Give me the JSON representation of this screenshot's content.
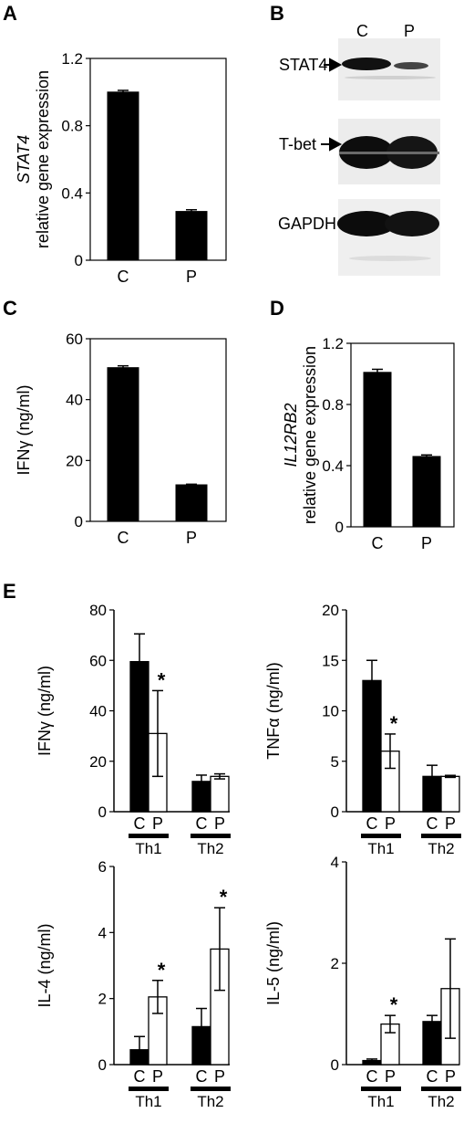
{
  "panels": {
    "A": "A",
    "B": "B",
    "C": "C",
    "D": "D",
    "E": "E"
  },
  "blot": {
    "lanes": [
      "C",
      "P"
    ],
    "bands": [
      {
        "label": "STAT4",
        "arrow": true
      },
      {
        "label": "T-bet",
        "arrow": true
      },
      {
        "label": "GAPDH",
        "arrow": false
      }
    ]
  },
  "chart_data": [
    {
      "id": "A",
      "type": "bar",
      "categories": [
        "C",
        "P"
      ],
      "values": [
        1.0,
        0.29
      ],
      "errors": [
        0.01,
        0.01
      ],
      "ylabel_italic": "STAT4",
      "ylabel": "relative gene expression",
      "ylim": [
        0,
        1.2
      ],
      "yticks": [
        "0",
        "0.4",
        "0.8",
        "1.2"
      ],
      "ytick_values": [
        0,
        0.4,
        0.8,
        1.2
      ],
      "colors": [
        "#000000",
        "#000000"
      ],
      "frame": "box"
    },
    {
      "id": "C",
      "type": "bar",
      "categories": [
        "C",
        "P"
      ],
      "values": [
        50.5,
        12.0
      ],
      "errors": [
        0.6,
        0.2
      ],
      "ylabel_italic": "",
      "ylabel": "IFNγ (ng/ml)",
      "ylim": [
        0,
        60
      ],
      "yticks": [
        "0",
        "20",
        "40",
        "60"
      ],
      "ytick_values": [
        0,
        20,
        40,
        60
      ],
      "colors": [
        "#000000",
        "#000000"
      ],
      "frame": "box"
    },
    {
      "id": "D",
      "type": "bar",
      "categories": [
        "C",
        "P"
      ],
      "values": [
        1.01,
        0.46
      ],
      "errors": [
        0.02,
        0.01
      ],
      "ylabel_italic": "IL12RB2",
      "ylabel": "relative gene expression",
      "ylim": [
        0,
        1.2
      ],
      "yticks": [
        "0",
        "0.4",
        "0.8",
        "1.2"
      ],
      "ytick_values": [
        0,
        0.4,
        0.8,
        1.2
      ],
      "colors": [
        "#000000",
        "#000000"
      ],
      "frame": "box"
    },
    {
      "id": "E1",
      "type": "bar",
      "grouped": true,
      "groups": [
        "Th1",
        "Th2"
      ],
      "categories": [
        "C",
        "P"
      ],
      "series": [
        {
          "name": "C",
          "values": [
            59.5,
            12.0
          ],
          "errors": [
            11.0,
            2.5
          ],
          "color": "#000000"
        },
        {
          "name": "P",
          "values": [
            31.0,
            14.0
          ],
          "errors": [
            17.0,
            1.0
          ],
          "color": "#ffffff"
        }
      ],
      "significant": [
        [
          false,
          false
        ],
        [
          true,
          false
        ]
      ],
      "ylabel": "IFNγ (ng/ml)",
      "ylim": [
        0,
        80
      ],
      "yticks": [
        "0",
        "20",
        "40",
        "60",
        "80"
      ],
      "ytick_values": [
        0,
        20,
        40,
        60,
        80
      ],
      "frame": "axis",
      "star": "*"
    },
    {
      "id": "E2",
      "type": "bar",
      "grouped": true,
      "groups": [
        "Th1",
        "Th2"
      ],
      "categories": [
        "C",
        "P"
      ],
      "series": [
        {
          "name": "C",
          "values": [
            13.0,
            3.5
          ],
          "errors": [
            2.0,
            1.1
          ],
          "color": "#000000"
        },
        {
          "name": "P",
          "values": [
            6.0,
            3.5
          ],
          "errors": [
            1.7,
            0.1
          ],
          "color": "#ffffff"
        }
      ],
      "significant": [
        [
          false,
          false
        ],
        [
          true,
          false
        ]
      ],
      "ylabel": "TNFα (ng/ml)",
      "ylim": [
        0,
        20
      ],
      "yticks": [
        "0",
        "5",
        "10",
        "15",
        "20"
      ],
      "ytick_values": [
        0,
        5,
        10,
        15,
        20
      ],
      "frame": "axis",
      "star": "*"
    },
    {
      "id": "E3",
      "type": "bar",
      "grouped": true,
      "groups": [
        "Th1",
        "Th2"
      ],
      "categories": [
        "C",
        "P"
      ],
      "series": [
        {
          "name": "C",
          "values": [
            0.45,
            1.15
          ],
          "errors": [
            0.4,
            0.55
          ],
          "color": "#000000"
        },
        {
          "name": "P",
          "values": [
            2.05,
            3.5
          ],
          "errors": [
            0.5,
            1.25
          ],
          "color": "#ffffff"
        }
      ],
      "significant": [
        [
          false,
          false
        ],
        [
          true,
          true
        ]
      ],
      "ylabel": "IL-4 (ng/ml)",
      "ylim": [
        0,
        6
      ],
      "yticks": [
        "0",
        "2",
        "4",
        "6"
      ],
      "ytick_values": [
        0,
        2,
        4,
        6
      ],
      "frame": "axis",
      "star": "*"
    },
    {
      "id": "E4",
      "type": "bar",
      "grouped": true,
      "groups": [
        "Th1",
        "Th2"
      ],
      "categories": [
        "C",
        "P"
      ],
      "series": [
        {
          "name": "C",
          "values": [
            0.08,
            0.85
          ],
          "errors": [
            0.03,
            0.12
          ],
          "color": "#000000"
        },
        {
          "name": "P",
          "values": [
            0.8,
            1.5
          ],
          "errors": [
            0.17,
            0.98
          ],
          "color": "#ffffff"
        }
      ],
      "significant": [
        [
          false,
          false
        ],
        [
          true,
          false
        ]
      ],
      "ylabel": "IL-5 (ng/ml)",
      "ylim": [
        0,
        4
      ],
      "yticks": [
        "0",
        "2",
        "4"
      ],
      "ytick_values": [
        0,
        2,
        4
      ],
      "frame": "axis",
      "star": "*"
    }
  ]
}
